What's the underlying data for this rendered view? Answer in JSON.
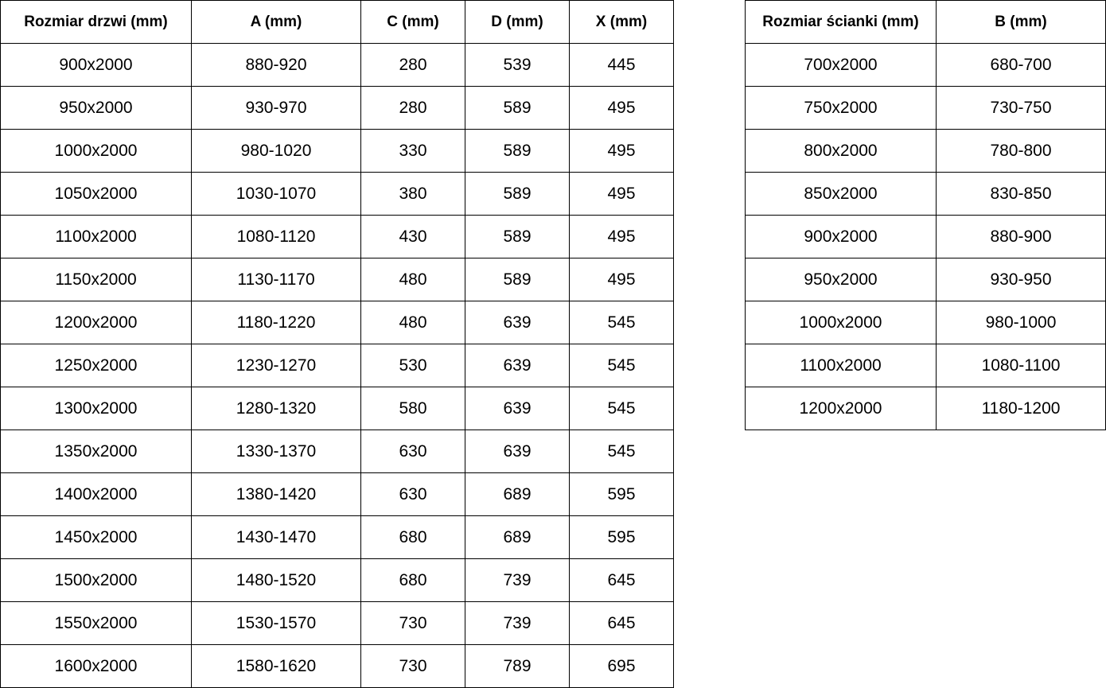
{
  "door_table": {
    "headers": [
      "Rozmiar drzwi (mm)",
      "A (mm)",
      "C (mm)",
      "D (mm)",
      "X (mm)"
    ],
    "rows": [
      [
        "900x2000",
        "880-920",
        "280",
        "539",
        "445"
      ],
      [
        "950x2000",
        "930-970",
        "280",
        "589",
        "495"
      ],
      [
        "1000x2000",
        "980-1020",
        "330",
        "589",
        "495"
      ],
      [
        "1050x2000",
        "1030-1070",
        "380",
        "589",
        "495"
      ],
      [
        "1100x2000",
        "1080-1120",
        "430",
        "589",
        "495"
      ],
      [
        "1150x2000",
        "1130-1170",
        "480",
        "589",
        "495"
      ],
      [
        "1200x2000",
        "1180-1220",
        "480",
        "639",
        "545"
      ],
      [
        "1250x2000",
        "1230-1270",
        "530",
        "639",
        "545"
      ],
      [
        "1300x2000",
        "1280-1320",
        "580",
        "639",
        "545"
      ],
      [
        "1350x2000",
        "1330-1370",
        "630",
        "639",
        "545"
      ],
      [
        "1400x2000",
        "1380-1420",
        "630",
        "689",
        "595"
      ],
      [
        "1450x2000",
        "1430-1470",
        "680",
        "689",
        "595"
      ],
      [
        "1500x2000",
        "1480-1520",
        "680",
        "739",
        "645"
      ],
      [
        "1550x2000",
        "1530-1570",
        "730",
        "739",
        "645"
      ],
      [
        "1600x2000",
        "1580-1620",
        "730",
        "789",
        "695"
      ]
    ]
  },
  "panel_table": {
    "headers": [
      "Rozmiar ścianki (mm)",
      "B (mm)"
    ],
    "rows": [
      [
        "700x2000",
        "680-700"
      ],
      [
        "750x2000",
        "730-750"
      ],
      [
        "800x2000",
        "780-800"
      ],
      [
        "850x2000",
        "830-850"
      ],
      [
        "900x2000",
        "880-900"
      ],
      [
        "950x2000",
        "930-950"
      ],
      [
        "1000x2000",
        "980-1000"
      ],
      [
        "1100x2000",
        "1080-1100"
      ],
      [
        "1200x2000",
        "1180-1200"
      ]
    ]
  }
}
